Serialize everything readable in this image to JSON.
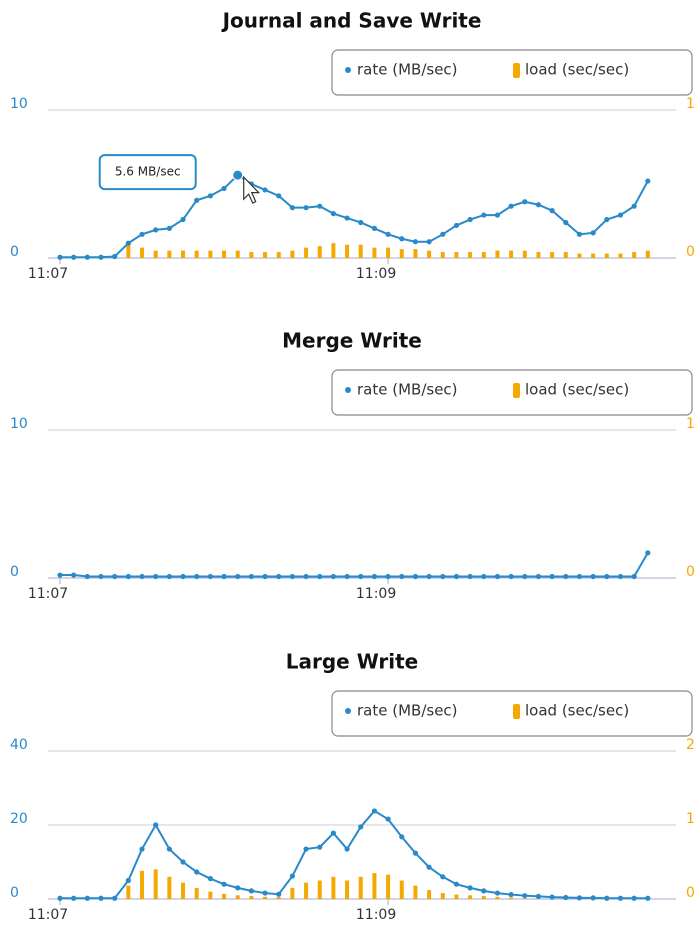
{
  "chart_data": [
    {
      "type": "line-bar",
      "title": "Journal and Save Write",
      "categories": [
        "11:07",
        null,
        null,
        null,
        null,
        null,
        null,
        null,
        null,
        null,
        null,
        null,
        null,
        null,
        null,
        null,
        null,
        null,
        null,
        null,
        null,
        null,
        null,
        null,
        "11:09",
        null,
        null,
        null,
        null,
        null,
        null,
        null,
        null,
        null,
        null,
        null,
        null,
        null,
        null,
        null,
        null,
        null,
        null,
        null
      ],
      "series": [
        {
          "name": "rate (MB/sec)",
          "color": "#2a8ac9",
          "axis": "y",
          "values": [
            0.05,
            0.05,
            0.05,
            0.05,
            0.1,
            1.0,
            1.6,
            1.9,
            2.0,
            2.6,
            3.9,
            4.2,
            4.7,
            5.6,
            5.0,
            4.6,
            4.2,
            3.4,
            3.4,
            3.5,
            3.0,
            2.7,
            2.4,
            2.0,
            1.6,
            1.3,
            1.1,
            1.1,
            1.6,
            2.2,
            2.6,
            2.9,
            2.9,
            3.5,
            3.8,
            3.6,
            3.2,
            2.4,
            1.6,
            1.7,
            2.6,
            2.9,
            3.5,
            5.2
          ]
        },
        {
          "name": "load (sec/sec)",
          "color": "#f5a800",
          "axis": "y2",
          "values": [
            0,
            0,
            0,
            0,
            0,
            0.09,
            0.07,
            0.05,
            0.05,
            0.05,
            0.05,
            0.05,
            0.05,
            0.05,
            0.04,
            0.04,
            0.04,
            0.05,
            0.07,
            0.08,
            0.1,
            0.09,
            0.09,
            0.07,
            0.07,
            0.06,
            0.06,
            0.05,
            0.04,
            0.04,
            0.04,
            0.04,
            0.05,
            0.05,
            0.05,
            0.04,
            0.04,
            0.04,
            0.03,
            0.03,
            0.03,
            0.03,
            0.04,
            0.05
          ]
        }
      ],
      "ylim": [
        0,
        10
      ],
      "yticks": [
        0,
        10
      ],
      "y2lim": [
        0,
        1
      ],
      "y2ticks": [
        0,
        1
      ],
      "grid": true,
      "tooltip": {
        "index": 13,
        "text": "5.6 MB/sec"
      }
    },
    {
      "type": "line-bar",
      "title": "Merge Write",
      "categories": [
        "11:07",
        null,
        null,
        null,
        null,
        null,
        null,
        null,
        null,
        null,
        null,
        null,
        null,
        null,
        null,
        null,
        null,
        null,
        null,
        null,
        null,
        null,
        null,
        null,
        "11:09",
        null,
        null,
        null,
        null,
        null,
        null,
        null,
        null,
        null,
        null,
        null,
        null,
        null,
        null,
        null,
        null,
        null,
        null,
        null
      ],
      "series": [
        {
          "name": "rate (MB/sec)",
          "color": "#2a8ac9",
          "axis": "y",
          "values": [
            0.2,
            0.2,
            0.1,
            0.1,
            0.1,
            0.1,
            0.1,
            0.1,
            0.1,
            0.1,
            0.1,
            0.1,
            0.1,
            0.1,
            0.1,
            0.1,
            0.1,
            0.1,
            0.1,
            0.1,
            0.1,
            0.1,
            0.1,
            0.1,
            0.1,
            0.1,
            0.1,
            0.1,
            0.1,
            0.1,
            0.1,
            0.1,
            0.1,
            0.1,
            0.1,
            0.1,
            0.1,
            0.1,
            0.1,
            0.1,
            0.1,
            0.1,
            0.1,
            1.7
          ]
        },
        {
          "name": "load (sec/sec)",
          "color": "#f5a800",
          "axis": "y2",
          "values": [
            0,
            0,
            0,
            0,
            0,
            0,
            0,
            0,
            0,
            0,
            0,
            0,
            0,
            0,
            0,
            0,
            0,
            0,
            0,
            0,
            0,
            0,
            0,
            0,
            0,
            0,
            0,
            0,
            0,
            0,
            0,
            0,
            0,
            0,
            0,
            0,
            0,
            0,
            0,
            0,
            0,
            0,
            0,
            0
          ]
        }
      ],
      "ylim": [
        0,
        10
      ],
      "yticks": [
        0,
        10
      ],
      "y2lim": [
        0,
        1
      ],
      "y2ticks": [
        0,
        1
      ],
      "grid": true
    },
    {
      "type": "line-bar",
      "title": "Large Write",
      "categories": [
        "11:07",
        null,
        null,
        null,
        null,
        null,
        null,
        null,
        null,
        null,
        null,
        null,
        null,
        null,
        null,
        null,
        null,
        null,
        null,
        null,
        null,
        null,
        null,
        null,
        "11:09",
        null,
        null,
        null,
        null,
        null,
        null,
        null,
        null,
        null,
        null,
        null,
        null,
        null,
        null,
        null,
        null,
        null,
        null,
        null
      ],
      "series": [
        {
          "name": "rate (MB/sec)",
          "color": "#2a8ac9",
          "axis": "y",
          "values": [
            0.2,
            0.2,
            0.2,
            0.2,
            0.2,
            5,
            13.5,
            20,
            13.5,
            10,
            7.3,
            5.5,
            4,
            3,
            2.2,
            1.6,
            1.3,
            6.2,
            13.5,
            14,
            17.8,
            13.5,
            19.5,
            23.8,
            21.6,
            16.8,
            12.4,
            8.6,
            6,
            4,
            3,
            2.2,
            1.6,
            1.2,
            0.9,
            0.7,
            0.5,
            0.4,
            0.3,
            0.3,
            0.2,
            0.2,
            0.2,
            0.2
          ]
        },
        {
          "name": "load (sec/sec)",
          "color": "#f5a800",
          "axis": "y2",
          "values": [
            0,
            0,
            0,
            0,
            0,
            0.18,
            0.38,
            0.4,
            0.3,
            0.22,
            0.15,
            0.1,
            0.07,
            0.05,
            0.04,
            0.03,
            0.03,
            0.15,
            0.22,
            0.25,
            0.3,
            0.25,
            0.3,
            0.35,
            0.33,
            0.25,
            0.18,
            0.12,
            0.08,
            0.06,
            0.05,
            0.04,
            0.03,
            0.02,
            0.01,
            0.01,
            0.01,
            0.01,
            0.01,
            0.01,
            0.01,
            0.01,
            0.01,
            0.01
          ]
        }
      ],
      "ylim": [
        0,
        40
      ],
      "yticks": [
        0,
        20,
        40
      ],
      "y2lim": [
        0,
        2
      ],
      "y2ticks": [
        0,
        1,
        2
      ],
      "grid": true
    }
  ]
}
